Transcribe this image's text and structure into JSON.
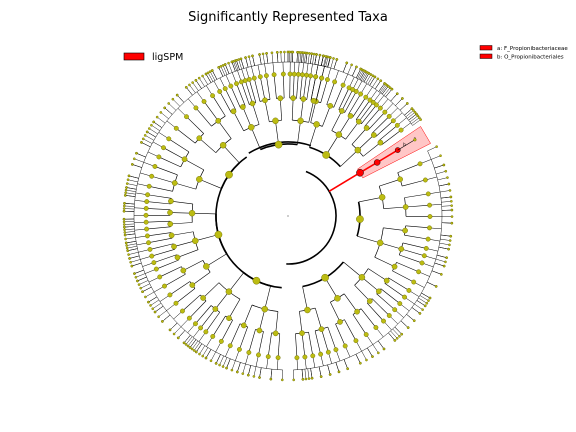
{
  "title": "Significantly Represented Taxa",
  "legend": {
    "groups": [
      {
        "name": "ligSPM",
        "color": "#ff0000"
      }
    ]
  },
  "clades": [
    {
      "mark": "a",
      "label": "a: F_Propionibacteriaceae",
      "color": "#ff0000"
    },
    {
      "mark": "b",
      "label": "b: O_Propionibacteriales",
      "color": "#ff0000"
    }
  ],
  "colors": {
    "node": "#bcbc12",
    "node_stroke": "#6e6e00",
    "highlight": "#ff0000",
    "highlight_band": "#ff8080",
    "branch": "#000000"
  }
}
